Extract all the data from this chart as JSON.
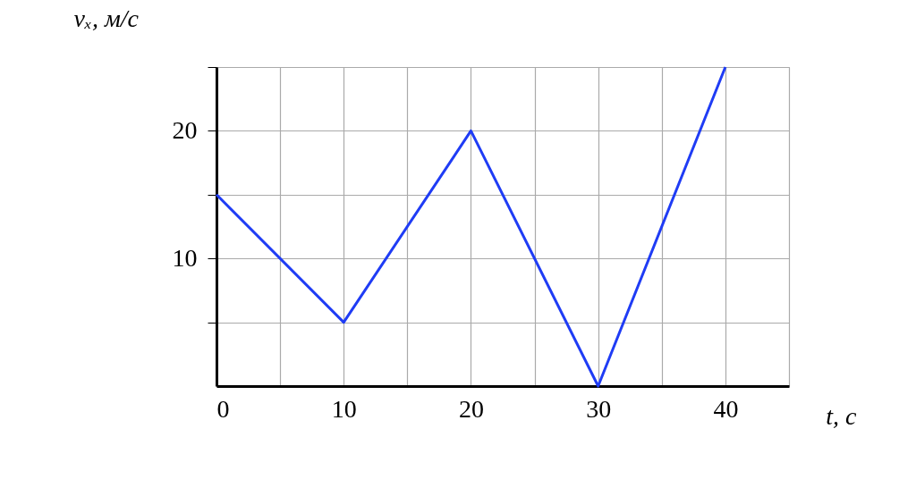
{
  "chart_data": {
    "type": "line",
    "xlabel": "t, с",
    "ylabel": "vₓ, м/с",
    "x": [
      0,
      10,
      20,
      30,
      40
    ],
    "series": [
      {
        "color": "#1f3cf5",
        "values": [
          15,
          5,
          20,
          0,
          25
        ]
      }
    ],
    "xlim": [
      0,
      45
    ],
    "ylim": [
      0,
      25
    ],
    "xticks": [
      0,
      {
        "value": 5,
        "label": null
      },
      10,
      {
        "value": 15,
        "label": null
      },
      20,
      {
        "value": 25,
        "label": null
      },
      30,
      {
        "value": 35,
        "label": null
      },
      40,
      {
        "value": 45,
        "label": null
      }
    ],
    "yticks": [
      {
        "value": 5,
        "label": null
      },
      10,
      {
        "value": 15,
        "label": null
      },
      20,
      {
        "value": 25,
        "label": null
      }
    ],
    "grid": true,
    "marker": "none",
    "line_style": "solid"
  }
}
